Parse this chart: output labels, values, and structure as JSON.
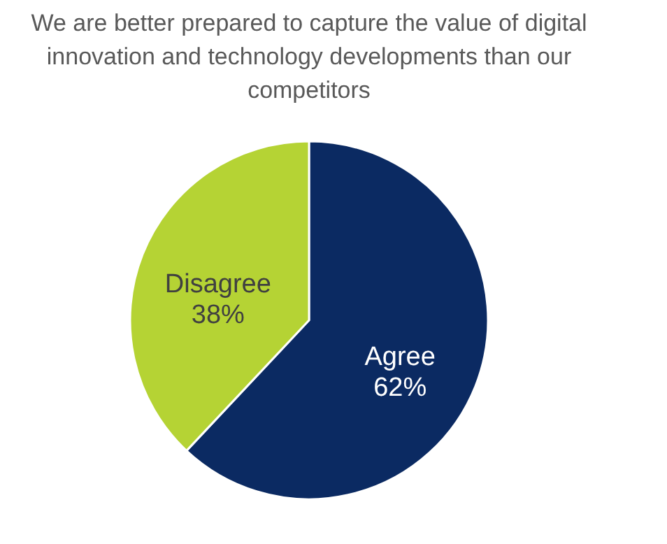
{
  "chart_data": {
    "type": "pie",
    "title": "We are better prepared to capture the value of digital innovation and technology developments than our competitors",
    "categories": [
      "Agree",
      "Disagree"
    ],
    "values": [
      62,
      38
    ],
    "colors": [
      "#0b2a62",
      "#b5d334"
    ],
    "value_labels": [
      "62%",
      "38%"
    ],
    "legend": false
  }
}
